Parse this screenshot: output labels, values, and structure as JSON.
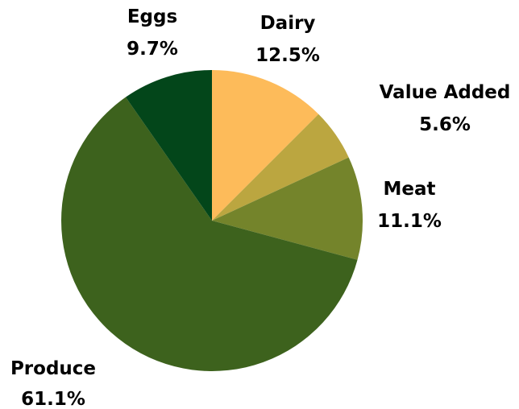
{
  "chart_data": {
    "type": "pie",
    "title": "",
    "slices": [
      {
        "label": "Dairy",
        "value": 12.5,
        "value_label": "12.5%",
        "color": "#fdbb5a"
      },
      {
        "label": "Value Added",
        "value": 5.6,
        "value_label": "5.6%",
        "color": "#bba640"
      },
      {
        "label": "Meat",
        "value": 11.1,
        "value_label": "11.1%",
        "color": "#74842b"
      },
      {
        "label": "Produce",
        "value": 61.1,
        "value_label": "61.1%",
        "color": "#3d621d"
      },
      {
        "label": "Eggs",
        "value": 9.7,
        "value_label": "9.7%",
        "color": "#03461a"
      }
    ],
    "start_angle": "12 o'clock",
    "direction": "clockwise",
    "legend": "none"
  }
}
